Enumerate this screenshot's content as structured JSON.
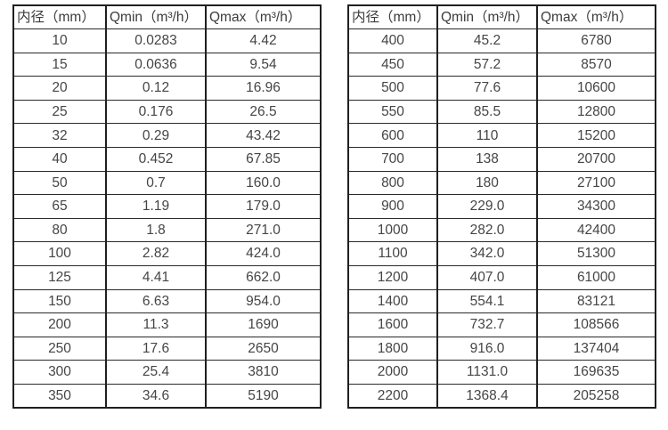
{
  "colors": {
    "background": "#ffffff",
    "border": "#1f1f1f",
    "text": "#404040"
  },
  "chart_data": [
    {
      "type": "table",
      "title": "",
      "headers": [
        "内径（mm）",
        "Qmin（m³/h）",
        "Qmax（m³/h）"
      ],
      "rows": [
        [
          "10",
          "0.0283",
          "4.42"
        ],
        [
          "15",
          "0.0636",
          "9.54"
        ],
        [
          "20",
          "0.12",
          "16.96"
        ],
        [
          "25",
          "0.176",
          "26.5"
        ],
        [
          "32",
          "0.29",
          "43.42"
        ],
        [
          "40",
          "0.452",
          "67.85"
        ],
        [
          "50",
          "0.7",
          "160.0"
        ],
        [
          "65",
          "1.19",
          "179.0"
        ],
        [
          "80",
          "1.8",
          "271.0"
        ],
        [
          "100",
          "2.82",
          "424.0"
        ],
        [
          "125",
          "4.41",
          "662.0"
        ],
        [
          "150",
          "6.63",
          "954.0"
        ],
        [
          "200",
          "11.3",
          "1690"
        ],
        [
          "250",
          "17.6",
          "2650"
        ],
        [
          "300",
          "25.4",
          "3810"
        ],
        [
          "350",
          "34.6",
          "5190"
        ]
      ]
    },
    {
      "type": "table",
      "title": "",
      "headers": [
        "内径（mm）",
        "Qmin（m³/h）",
        "Qmax（m³/h）"
      ],
      "rows": [
        [
          "400",
          "45.2",
          "6780"
        ],
        [
          "450",
          "57.2",
          "8570"
        ],
        [
          "500",
          "77.6",
          "10600"
        ],
        [
          "550",
          "85.5",
          "12800"
        ],
        [
          "600",
          "110",
          "15200"
        ],
        [
          "700",
          "138",
          "20700"
        ],
        [
          "800",
          "180",
          "27100"
        ],
        [
          "900",
          "229.0",
          "34300"
        ],
        [
          "1000",
          "282.0",
          "42400"
        ],
        [
          "1100",
          "342.0",
          "51300"
        ],
        [
          "1200",
          "407.0",
          "61000"
        ],
        [
          "1400",
          "554.1",
          "83121"
        ],
        [
          "1600",
          "732.7",
          "108566"
        ],
        [
          "1800",
          "916.0",
          "137404"
        ],
        [
          "2000",
          "1131.0",
          "169635"
        ],
        [
          "2200",
          "1368.4",
          "205258"
        ]
      ]
    }
  ]
}
